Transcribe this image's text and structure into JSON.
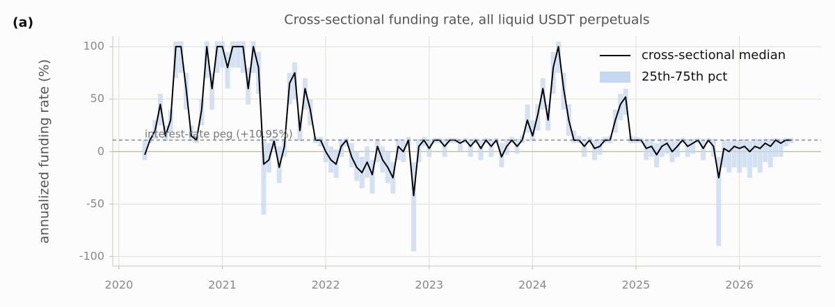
{
  "chart_data": {
    "type": "line",
    "panel_label": "(a)",
    "title": "Cross-sectional funding rate, all liquid USDT perpetuals",
    "y_label": "annualized funding rate (%)",
    "xlim": [
      2019.94,
      2026.79
    ],
    "xticks": [
      2020,
      2021,
      2022,
      2023,
      2024,
      2025,
      2026
    ],
    "ylim": [
      -109,
      110
    ],
    "yticks": [
      -100,
      -50,
      0,
      50,
      100
    ],
    "grid": true,
    "legend": "upper right",
    "reference_line": {
      "value": 10.95,
      "label": "interest-rate peg (+10.95%)"
    },
    "x": [
      2020.25,
      2020.3,
      2020.35,
      2020.4,
      2020.45,
      2020.5,
      2020.55,
      2020.6,
      2020.65,
      2020.7,
      2020.75,
      2020.8,
      2020.85,
      2020.9,
      2020.95,
      2021,
      2021.05,
      2021.1,
      2021.15,
      2021.2,
      2021.25,
      2021.3,
      2021.35,
      2021.4,
      2021.45,
      2021.5,
      2021.55,
      2021.6,
      2021.65,
      2021.7,
      2021.75,
      2021.8,
      2021.85,
      2021.9,
      2021.95,
      2022,
      2022.05,
      2022.1,
      2022.15,
      2022.2,
      2022.25,
      2022.3,
      2022.35,
      2022.4,
      2022.45,
      2022.5,
      2022.55,
      2022.6,
      2022.65,
      2022.7,
      2022.75,
      2022.8,
      2022.85,
      2022.9,
      2022.95,
      2023,
      2023.05,
      2023.1,
      2023.15,
      2023.2,
      2023.25,
      2023.3,
      2023.35,
      2023.4,
      2023.45,
      2023.5,
      2023.55,
      2023.6,
      2023.65,
      2023.7,
      2023.75,
      2023.8,
      2023.85,
      2023.9,
      2023.95,
      2024,
      2024.05,
      2024.1,
      2024.15,
      2024.2,
      2024.25,
      2024.3,
      2024.35,
      2024.4,
      2024.45,
      2024.5,
      2024.55,
      2024.6,
      2024.65,
      2024.7,
      2024.75,
      2024.8,
      2024.85,
      2024.9,
      2024.95,
      2025,
      2025.05,
      2025.1,
      2025.15,
      2025.2,
      2025.25,
      2025.3,
      2025.35,
      2025.4,
      2025.45,
      2025.5,
      2025.55,
      2025.6,
      2025.65,
      2025.7,
      2025.75,
      2025.8,
      2025.85,
      2025.9,
      2025.95,
      2026,
      2026.05,
      2026.1,
      2026.15,
      2026.2,
      2026.25,
      2026.3,
      2026.35,
      2026.4,
      2026.45,
      2026.5
    ],
    "series": [
      {
        "name": "cross-sectional median",
        "color": "#000000",
        "values": [
          -3,
          10.95,
          20,
          45,
          15,
          30,
          100,
          100,
          60,
          15,
          10.95,
          40,
          100,
          60,
          100,
          100,
          80,
          100,
          100,
          100,
          60,
          100,
          80,
          -12,
          -8,
          10,
          -15,
          5,
          65,
          75,
          20,
          60,
          40,
          10.95,
          10.95,
          0,
          -8,
          -12,
          5,
          10.95,
          -5,
          -15,
          -20,
          -10,
          -22,
          5,
          -8,
          -15,
          -25,
          5,
          0,
          10.95,
          -42,
          5,
          10.95,
          3,
          10.95,
          10.95,
          5,
          10.95,
          10.95,
          8,
          10.95,
          5,
          10.95,
          3,
          10.95,
          5,
          10.95,
          -5,
          5,
          10.95,
          5,
          10.95,
          30,
          15,
          35,
          60,
          30,
          80,
          100,
          60,
          30,
          10.95,
          10.95,
          5,
          10.95,
          3,
          5,
          10.95,
          10.95,
          30,
          45,
          52,
          10.95,
          10.95,
          10.95,
          3,
          5,
          -3,
          5,
          8,
          0,
          5,
          10.95,
          5,
          8,
          10.95,
          3,
          10.95,
          5,
          -25,
          3,
          0,
          5,
          3,
          5,
          0,
          5,
          3,
          8,
          5,
          10.95,
          8,
          10.95,
          10.95
        ]
      },
      {
        "name": "25th-75th pct",
        "color": "#c5d8ef",
        "lower": [
          -8,
          8,
          12,
          25,
          10,
          18,
          70,
          75,
          40,
          10,
          8,
          25,
          70,
          40,
          75,
          80,
          60,
          80,
          80,
          75,
          45,
          75,
          55,
          -60,
          -20,
          2,
          -30,
          -5,
          45,
          50,
          10,
          40,
          25,
          8,
          5,
          -10,
          -20,
          -25,
          -5,
          5,
          -15,
          -28,
          -35,
          -25,
          -40,
          -10,
          -20,
          -30,
          -40,
          -8,
          -10,
          5,
          -95,
          -10,
          5,
          -5,
          8,
          8,
          -5,
          8,
          8,
          0,
          8,
          -5,
          8,
          -8,
          8,
          -5,
          8,
          -15,
          -3,
          8,
          -2,
          8,
          18,
          10,
          20,
          40,
          20,
          55,
          75,
          40,
          15,
          8,
          8,
          -5,
          8,
          -8,
          -3,
          8,
          8,
          18,
          30,
          35,
          8,
          8,
          8,
          -8,
          -5,
          -15,
          -5,
          -2,
          -10,
          -5,
          8,
          -5,
          -2,
          8,
          -8,
          8,
          -5,
          -90,
          -15,
          -20,
          -15,
          -20,
          -15,
          -25,
          -15,
          -20,
          -10,
          -15,
          -5,
          -5,
          5,
          8
        ],
        "upper": [
          11,
          14,
          30,
          55,
          25,
          40,
          105,
          105,
          75,
          25,
          15,
          50,
          105,
          75,
          105,
          105,
          95,
          105,
          105,
          105,
          80,
          105,
          95,
          10,
          8,
          14,
          5,
          12,
          75,
          85,
          35,
          70,
          50,
          14,
          14,
          10,
          5,
          2,
          12,
          13,
          8,
          0,
          -5,
          5,
          -8,
          12,
          5,
          0,
          -10,
          12,
          10,
          14,
          -10,
          12,
          14,
          11,
          13,
          13,
          12,
          13,
          13,
          12,
          13,
          12,
          13,
          11,
          13,
          12,
          13,
          8,
          12,
          14,
          12,
          15,
          45,
          30,
          45,
          70,
          45,
          95,
          105,
          75,
          45,
          20,
          15,
          12,
          14,
          11,
          12,
          14,
          15,
          40,
          55,
          60,
          15,
          14,
          13,
          11,
          12,
          8,
          12,
          12,
          10,
          12,
          13,
          12,
          12,
          13,
          11,
          13,
          12,
          -5,
          11,
          10,
          12,
          11,
          12,
          10,
          12,
          11,
          12,
          12,
          13,
          12,
          13,
          13
        ]
      }
    ]
  }
}
